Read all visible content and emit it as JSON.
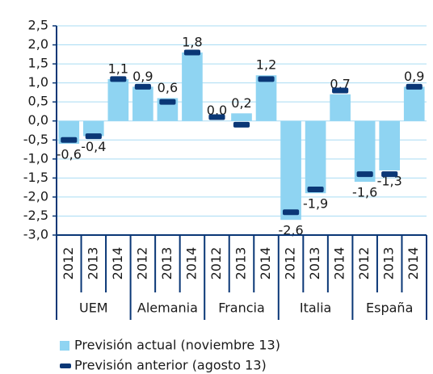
{
  "chart_data": {
    "type": "bar",
    "categories": [
      "2012",
      "2013",
      "2014",
      "2012",
      "2013",
      "2014",
      "2012",
      "2013",
      "2014",
      "2012",
      "2013",
      "2014",
      "2012",
      "2013",
      "2014"
    ],
    "groups": [
      "UEM",
      "Alemania",
      "Francia",
      "Italia",
      "España"
    ],
    "series": [
      {
        "name": "Previsión actual (noviembre 13)",
        "color": "#8fd4f2",
        "mark": "bar",
        "values": [
          -0.6,
          -0.4,
          1.1,
          0.9,
          0.6,
          1.8,
          0.0,
          0.2,
          1.2,
          -2.6,
          -1.9,
          0.7,
          -1.6,
          -1.3,
          0.9
        ],
        "value_labels": [
          "-0,6",
          "-0,4",
          "1,1",
          "0,9",
          "0,6",
          "1,8",
          "0,0",
          "0,2",
          "1,2",
          "-2,6",
          "-1,9",
          "0,7",
          "-1,6",
          "-1,3",
          "0,9"
        ]
      },
      {
        "name": "Previsión anterior (agosto 13)",
        "color": "#0a3776",
        "mark": "dash",
        "values": [
          -0.5,
          -0.4,
          1.1,
          0.9,
          0.5,
          1.8,
          0.1,
          -0.1,
          1.1,
          -2.4,
          -1.8,
          0.8,
          -1.4,
          -1.4,
          0.9
        ]
      }
    ],
    "ylim": [
      -3.0,
      2.5
    ],
    "yticks": [
      {
        "value": -3.0,
        "label": "-3,0"
      },
      {
        "value": -2.5,
        "label": "-2,5"
      },
      {
        "value": -2.0,
        "label": "-2,0"
      },
      {
        "value": -1.5,
        "label": "-1,5"
      },
      {
        "value": -1.0,
        "label": "-1,0"
      },
      {
        "value": -0.5,
        "label": "-0,5"
      },
      {
        "value": 0.0,
        "label": "0,0"
      },
      {
        "value": 0.5,
        "label": "0,5"
      },
      {
        "value": 1.0,
        "label": "1,0"
      },
      {
        "value": 1.5,
        "label": "1,5"
      },
      {
        "value": 2.0,
        "label": "2,0"
      },
      {
        "value": 2.5,
        "label": "2,5"
      }
    ],
    "grid": true
  }
}
